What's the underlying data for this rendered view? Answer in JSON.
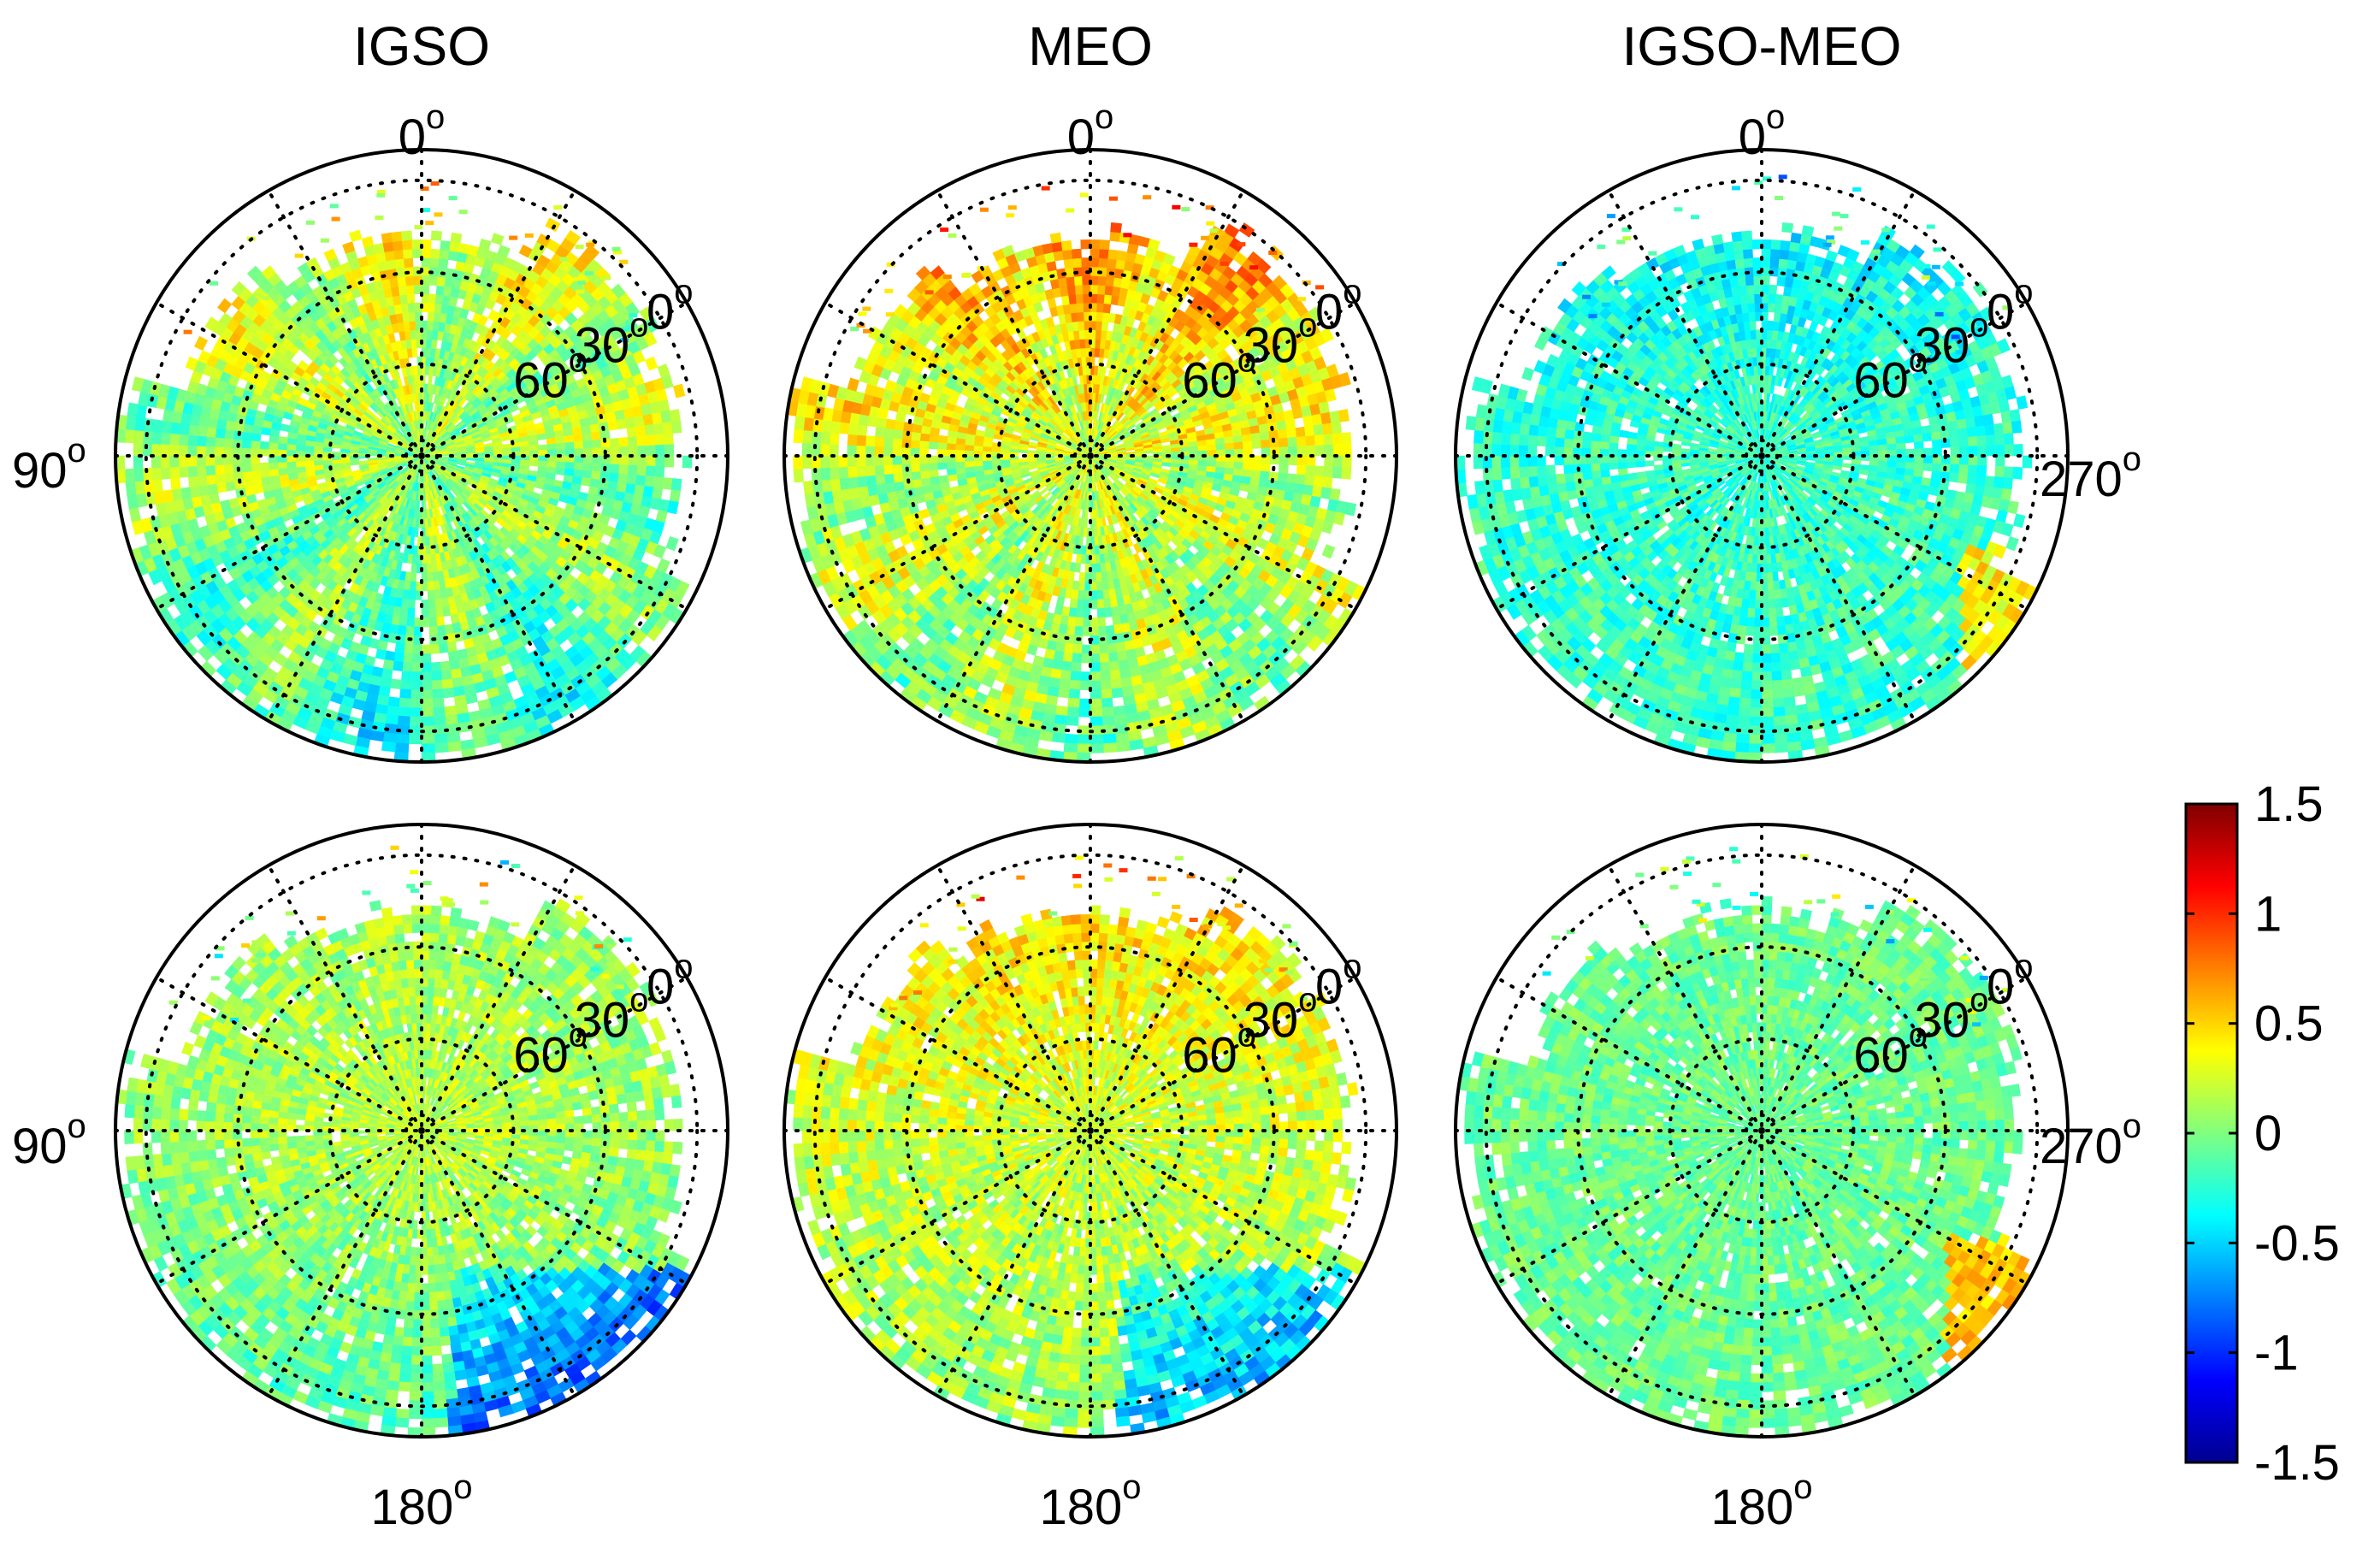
{
  "chart_data": {
    "type": "heatmap",
    "subtype": "polar-skyplot",
    "columns": [
      {
        "title": "IGSO",
        "key": "igso"
      },
      {
        "title": "MEO",
        "key": "meo"
      },
      {
        "title": "IGSO-MEO",
        "key": "diff"
      }
    ],
    "rows": 2,
    "axis": {
      "azimuth_labels": {
        "top": {
          "value": "0",
          "sup": "o"
        },
        "left": {
          "value": "90",
          "sup": "o"
        },
        "right": {
          "value": "270",
          "sup": "o"
        },
        "bottom": {
          "value": "180",
          "sup": "o"
        }
      },
      "elevation_labels": [
        {
          "value": "0",
          "sup": "o"
        },
        {
          "value": "30",
          "sup": "o"
        },
        {
          "value": "60",
          "sup": "o"
        }
      ],
      "grid": true,
      "grid_style": "dotted"
    },
    "colorbar": {
      "colormap": "jet",
      "range": [
        -1.5,
        1.5
      ],
      "ticks": [
        "1.5",
        "1",
        "0.5",
        "0",
        "-0.5",
        "-1",
        "-1.5"
      ],
      "placement": "right"
    },
    "panels": [
      {
        "row": 0,
        "col": 0,
        "name": "IGSO",
        "dominant_range": [
          -0.6,
          0.5
        ],
        "high_region": "north",
        "low_region": "south"
      },
      {
        "row": 0,
        "col": 1,
        "name": "MEO",
        "dominant_range": [
          -0.5,
          1.1
        ],
        "high_region": "north",
        "low_region": "south"
      },
      {
        "row": 0,
        "col": 2,
        "name": "IGSO-MEO",
        "dominant_range": [
          -0.7,
          0.4
        ],
        "high_region": "east-edge",
        "low_region": "north"
      },
      {
        "row": 1,
        "col": 0,
        "name": "IGSO",
        "dominant_range": [
          -1.2,
          0.4
        ],
        "high_region": "center",
        "low_region": "south-east"
      },
      {
        "row": 1,
        "col": 1,
        "name": "MEO",
        "dominant_range": [
          -1.1,
          0.8
        ],
        "high_region": "north",
        "low_region": "south-east"
      },
      {
        "row": 1,
        "col": 2,
        "name": "IGSO-MEO",
        "dominant_range": [
          -0.4,
          0.6
        ],
        "high_region": "east-edge",
        "low_region": "none"
      }
    ]
  }
}
